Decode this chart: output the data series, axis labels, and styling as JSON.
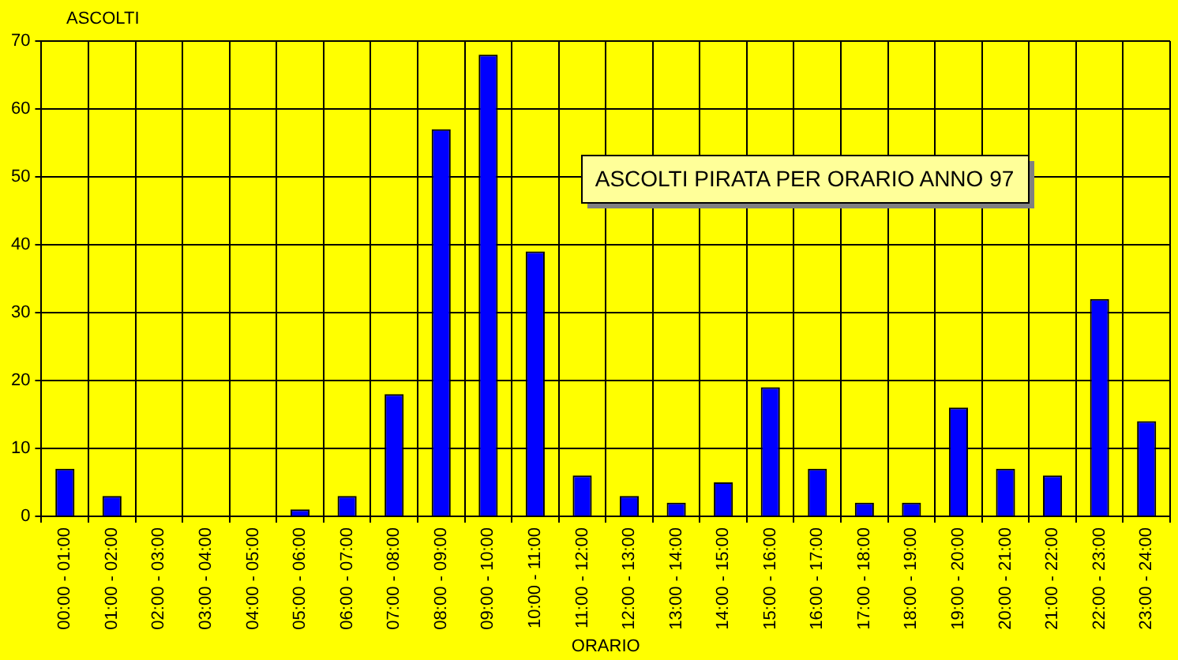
{
  "chart_data": {
    "type": "bar",
    "title": "ASCOLTI PIRATA PER ORARIO ANNO 97",
    "ylabel": "ASCOLTI",
    "xlabel": "ORARIO",
    "categories": [
      "00:00 - 01:00",
      "01:00 - 02:00",
      "02:00 - 03:00",
      "03:00 - 04:00",
      "04:00 - 05:00",
      "05:00 - 06:00",
      "06:00 - 07:00",
      "07:00 - 08:00",
      "08:00 - 09:00",
      "09:00 - 10:00",
      "10:00 - 11:00",
      "11:00 - 12:00",
      "12:00 - 13:00",
      "13:00 - 14:00",
      "14:00 - 15:00",
      "15:00 - 16:00",
      "16:00 - 17:00",
      "17:00 - 18:00",
      "18:00 - 19:00",
      "19:00 - 20:00",
      "20:00 - 21:00",
      "21:00 - 22:00",
      "22:00 - 23:00",
      "23:00 - 24:00"
    ],
    "values": [
      7,
      3,
      0,
      0,
      0,
      1,
      3,
      18,
      57,
      68,
      39,
      6,
      3,
      2,
      5,
      19,
      7,
      2,
      2,
      16,
      7,
      6,
      32,
      14
    ],
    "color": "#0000ff",
    "ylim": [
      0,
      70
    ],
    "yticks": [
      0,
      10,
      20,
      30,
      40,
      50,
      60,
      70
    ],
    "grid": true,
    "legend": false
  }
}
